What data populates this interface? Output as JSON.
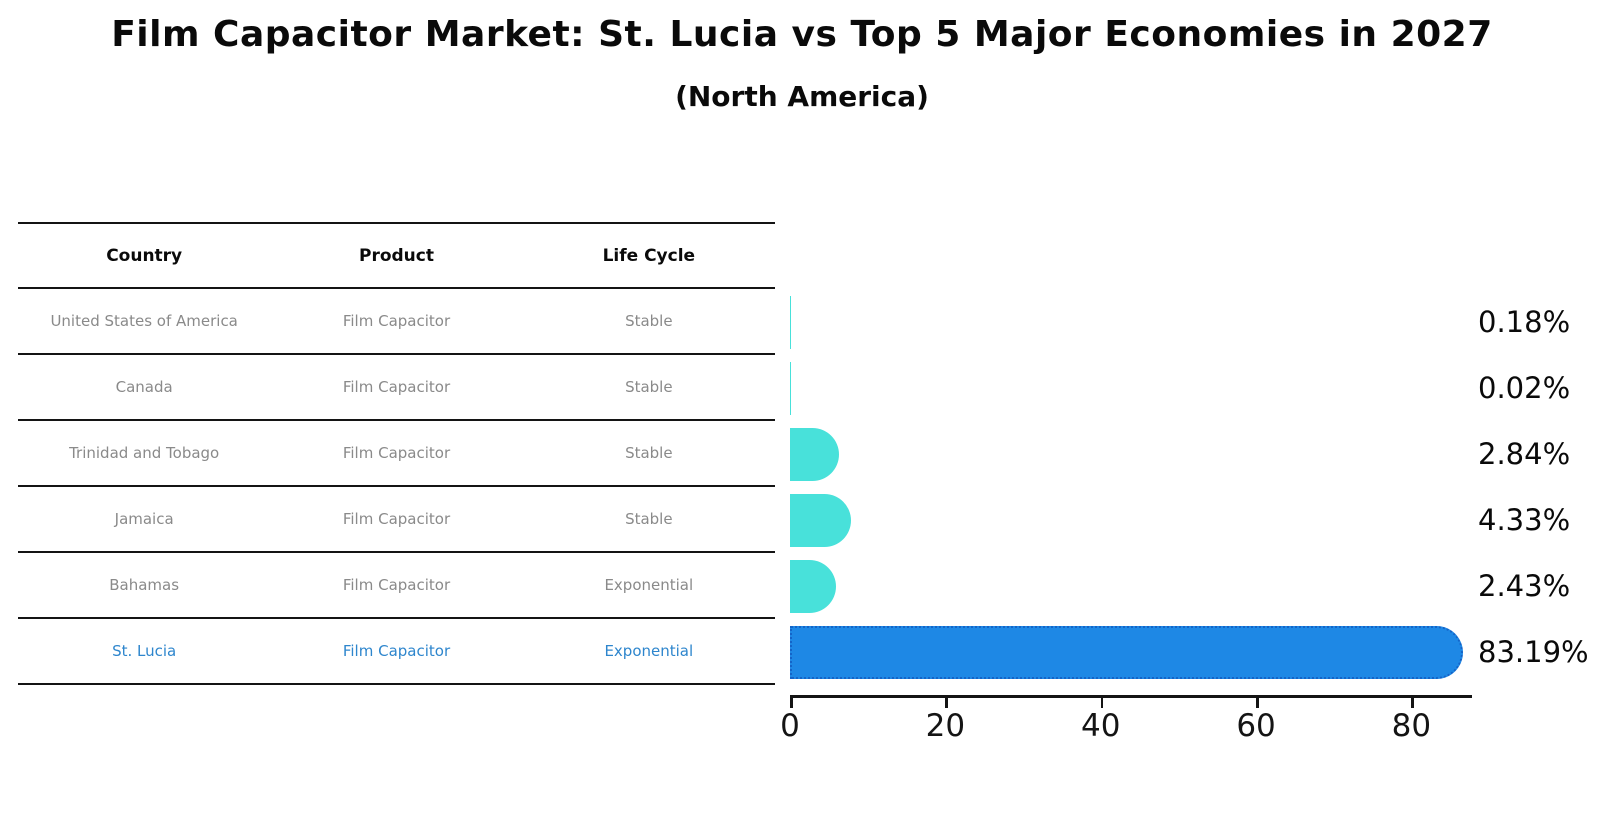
{
  "title": "Film Capacitor Market: St. Lucia vs Top 5 Major Economies in 2027",
  "subtitle": "(North America)",
  "table": {
    "columns": [
      "Country",
      "Product",
      "Life Cycle"
    ],
    "rows": [
      {
        "country": "United States of America",
        "product": "Film Capacitor",
        "life_cycle": "Stable",
        "highlight": false
      },
      {
        "country": "Canada",
        "product": "Film Capacitor",
        "life_cycle": "Stable",
        "highlight": false
      },
      {
        "country": "Trinidad and Tobago",
        "product": "Film Capacitor",
        "life_cycle": "Stable",
        "highlight": false
      },
      {
        "country": "Jamaica",
        "product": "Film Capacitor",
        "life_cycle": "Stable",
        "highlight": false
      },
      {
        "country": "Bahamas",
        "product": "Film Capacitor",
        "life_cycle": "Exponential",
        "highlight": false
      },
      {
        "country": "St. Lucia",
        "product": "Film Capacitor",
        "life_cycle": "Exponential",
        "highlight": true
      }
    ]
  },
  "chart_data": {
    "type": "bar",
    "orientation": "horizontal",
    "title": "Film Capacitor Market: St. Lucia vs Top 5 Major Economies in 2027",
    "subtitle": "(North America)",
    "categories": [
      "United States of America",
      "Canada",
      "Trinidad and Tobago",
      "Jamaica",
      "Bahamas",
      "St. Lucia"
    ],
    "values": [
      0.18,
      0.02,
      2.84,
      4.33,
      2.43,
      83.19
    ],
    "value_labels": [
      "0.18%",
      "0.02%",
      "2.84%",
      "4.33%",
      "2.43%",
      "83.19%"
    ],
    "x_ticks": [
      0,
      20,
      40,
      60,
      80
    ],
    "x_tick_labels": [
      "0",
      "20",
      "40",
      "60",
      "80"
    ],
    "xlim": [
      0,
      87.8
    ],
    "xlabel": "",
    "ylabel": "",
    "grid": false,
    "legend": "none",
    "bar_color": "#48e1da",
    "highlight_color": "#1e88e5",
    "highlight_border_color": "#1464c8",
    "highlight_index": 5,
    "highlight_text_color": "#2e86cd"
  }
}
